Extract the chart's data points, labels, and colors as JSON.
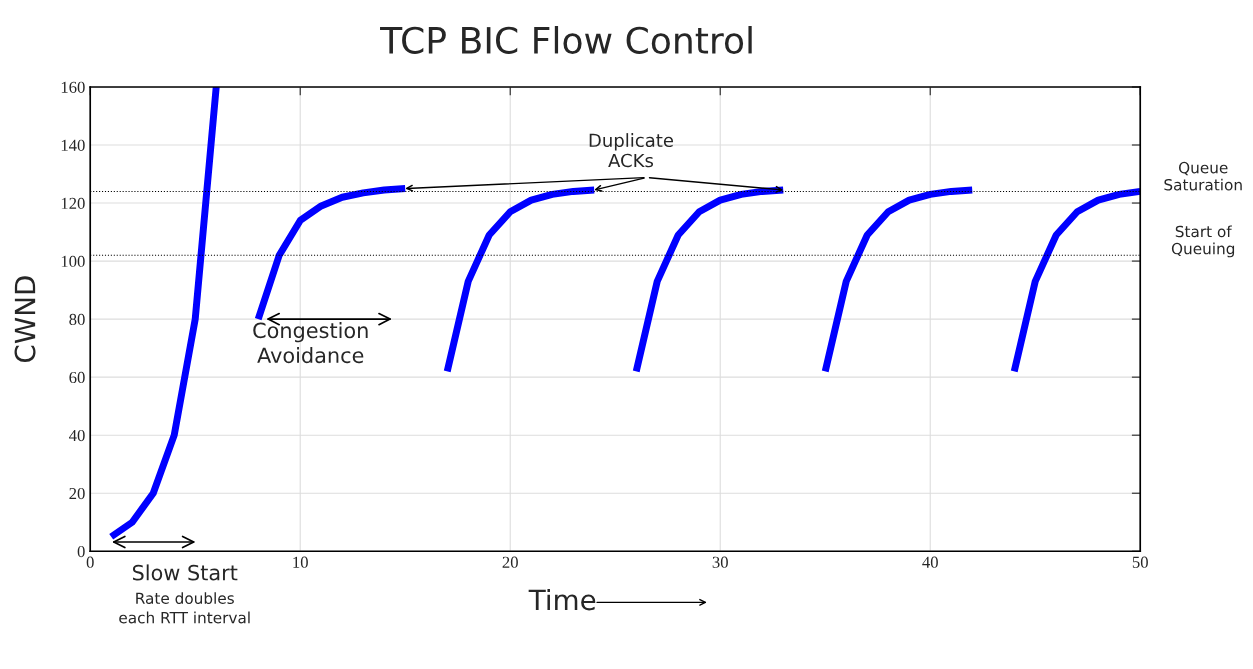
{
  "chart_data": {
    "type": "line",
    "title": "TCP BIC Flow Control",
    "xlabel": "Time",
    "ylabel": "CWND",
    "xlim": [
      0,
      50
    ],
    "ylim": [
      0,
      160
    ],
    "xticks": [
      0,
      10,
      20,
      30,
      40,
      50
    ],
    "yticks": [
      0,
      20,
      40,
      60,
      80,
      100,
      120,
      140,
      160
    ],
    "grid": true,
    "marker": "none",
    "line_style": "solid",
    "series": [
      {
        "color": "#0000ff",
        "x": [
          1,
          2,
          3,
          4,
          5,
          6
        ],
        "values": [
          5,
          10,
          20,
          40,
          80,
          160
        ]
      },
      {
        "color": "#0000ff",
        "x": [
          8,
          9,
          10,
          11,
          12,
          13,
          14,
          15
        ],
        "values": [
          80,
          102,
          114,
          119,
          122,
          123.5,
          124.5,
          125
        ]
      },
      {
        "color": "#0000ff",
        "x": [
          17,
          18,
          19,
          20,
          21,
          22,
          23,
          24
        ],
        "values": [
          62,
          93,
          109,
          117,
          121,
          123,
          124,
          124.5
        ]
      },
      {
        "color": "#0000ff",
        "x": [
          26,
          27,
          28,
          29,
          30,
          31,
          32,
          33
        ],
        "values": [
          62,
          93,
          109,
          117,
          121,
          123,
          124,
          124.5
        ]
      },
      {
        "color": "#0000ff",
        "x": [
          35,
          36,
          37,
          38,
          39,
          40,
          41,
          42
        ],
        "values": [
          62,
          93,
          109,
          117,
          121,
          123,
          124,
          124.5
        ]
      },
      {
        "color": "#0000ff",
        "x": [
          44,
          45,
          46,
          47,
          48,
          49,
          50
        ],
        "values": [
          62,
          93,
          109,
          117,
          121,
          123,
          124
        ]
      }
    ],
    "ref_lines": [
      {
        "axis": "y",
        "value": 124,
        "label": "Queue\nSaturation",
        "color": "#000000",
        "line_style": "dotted"
      },
      {
        "axis": "y",
        "value": 102,
        "label": "Start of\nQueuing",
        "color": "#000000",
        "line_style": "dotted"
      }
    ],
    "annotations": [
      {
        "text": "Duplicate\nACKs",
        "x": 24,
        "y": 124.5
      },
      "Congestion\nAvoidance",
      "Slow Start",
      "Rate doubles\neach RTT interval"
    ]
  }
}
